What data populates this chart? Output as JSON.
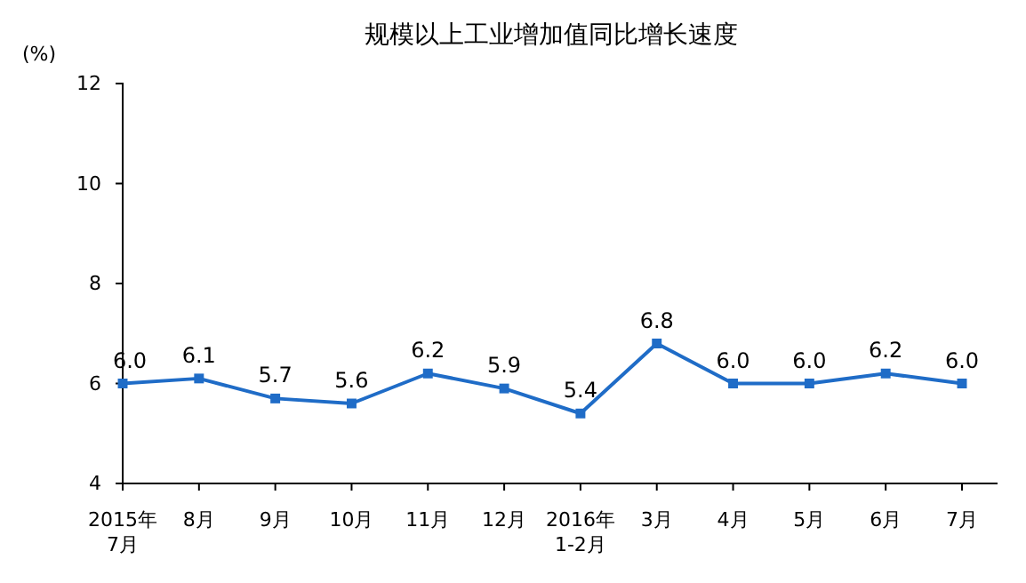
{
  "chart_data": {
    "type": "line",
    "title": "规模以上工业增加值同比增长速度",
    "ylabel": "(%)",
    "categories": [
      "2015年\n7月",
      "8月",
      "9月",
      "10月",
      "11月",
      "12月",
      "2016年\n1-2月",
      "3月",
      "4月",
      "5月",
      "6月",
      "7月"
    ],
    "series": [
      {
        "color": "#1f6cc7",
        "values": [
          6.0,
          6.1,
          5.7,
          5.6,
          6.2,
          5.9,
          5.4,
          6.8,
          6.0,
          6.0,
          6.2,
          6.0
        ],
        "value_labels": [
          "6.0",
          "6.1",
          "5.7",
          "5.6",
          "6.2",
          "5.9",
          "5.4",
          "6.8",
          "6.0",
          "6.0",
          "6.2",
          "6.0"
        ]
      }
    ],
    "ylim": [
      4,
      12
    ],
    "yticks": [
      4,
      6,
      8,
      10,
      12
    ],
    "grid": false,
    "marker": "square",
    "line_style": "solid"
  }
}
